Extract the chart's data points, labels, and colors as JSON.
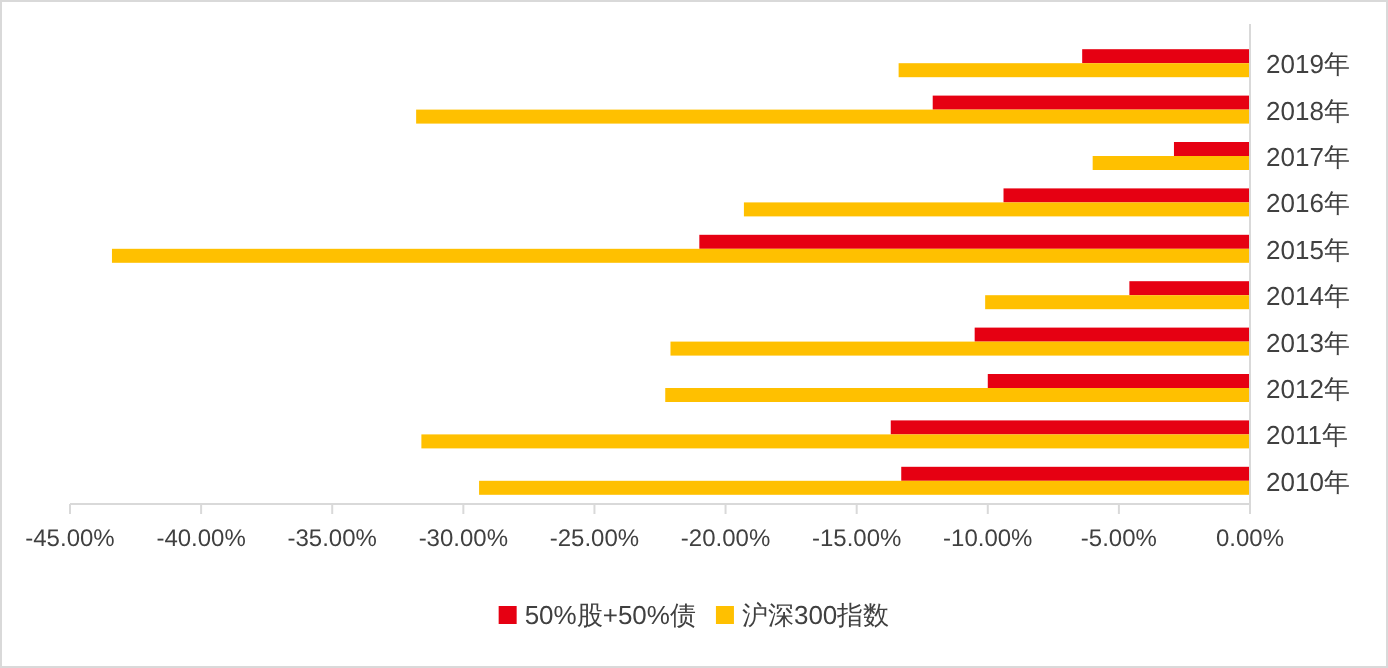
{
  "chart_data": {
    "type": "bar",
    "orientation": "horizontal",
    "categories": [
      "2019年",
      "2018年",
      "2017年",
      "2016年",
      "2015年",
      "2014年",
      "2013年",
      "2012年",
      "2011年",
      "2010年"
    ],
    "series": [
      {
        "name": "50%股+50%债",
        "color": "#e60012",
        "values": [
          -6.4,
          -12.1,
          -2.9,
          -9.4,
          -21.0,
          -4.6,
          -10.5,
          -10.0,
          -13.7,
          -13.3
        ]
      },
      {
        "name": "沪深300指数",
        "color": "#ffc000",
        "values": [
          -13.4,
          -31.8,
          -6.0,
          -19.3,
          -43.4,
          -10.1,
          -22.1,
          -22.3,
          -31.6,
          -29.4
        ]
      }
    ],
    "xlim": [
      -45,
      0
    ],
    "xticks": [
      {
        "value": -45,
        "label": "-45.00%"
      },
      {
        "value": -40,
        "label": "-40.00%"
      },
      {
        "value": -35,
        "label": "-35.00%"
      },
      {
        "value": -30,
        "label": "-30.00%"
      },
      {
        "value": -25,
        "label": "-25.00%"
      },
      {
        "value": -20,
        "label": "-20.00%"
      },
      {
        "value": -15,
        "label": "-15.00%"
      },
      {
        "value": -10,
        "label": "-10.00%"
      },
      {
        "value": -5,
        "label": "-5.00%"
      },
      {
        "value": 0,
        "label": "0.00%"
      }
    ],
    "grid": false,
    "legend": "bottom"
  }
}
